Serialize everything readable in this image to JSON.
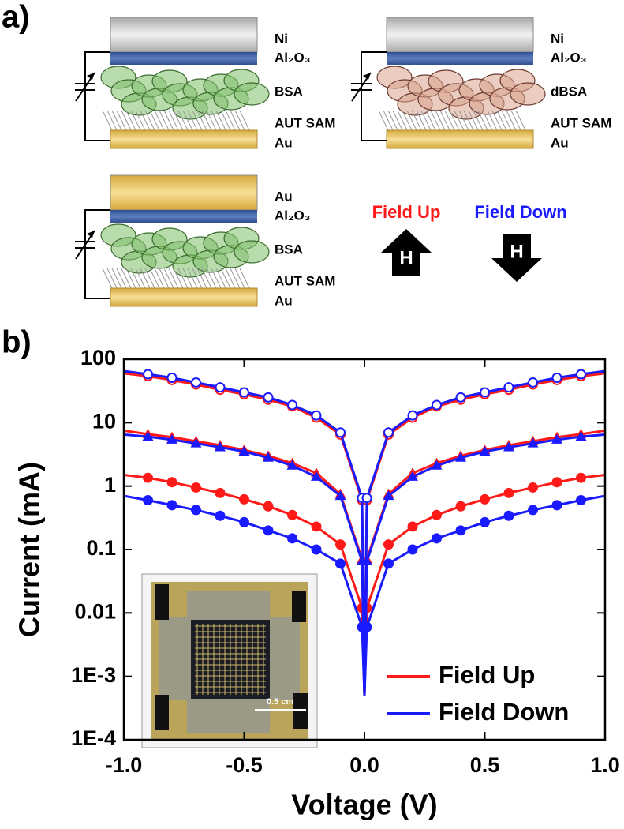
{
  "panel_labels": [
    "a)",
    "b)"
  ],
  "diagrams": [
    {
      "layers": [
        "Ni",
        "Al₂O₃",
        "BSA",
        "AUT SAM",
        "Au"
      ]
    },
    {
      "layers": [
        "Ni",
        "Al₂O₃",
        "dBSA",
        "AUT SAM",
        "Au"
      ]
    },
    {
      "layers": [
        "Au",
        "Al₂O₃",
        "BSA",
        "AUT SAM",
        "Au"
      ]
    }
  ],
  "field": {
    "up": "Field Up",
    "down": "Field Down",
    "symbol": "H"
  },
  "chart_data": {
    "type": "line",
    "xlabel": "Voltage (V)",
    "ylabel": "Current (mA)",
    "log_y": true,
    "legend": "lower right",
    "inset_scale_label": "0.5 cm",
    "x": [
      -1,
      -0.9,
      -0.8,
      -0.7,
      -0.6,
      -0.5,
      -0.4,
      -0.3,
      -0.2,
      -0.1,
      -0.01,
      0,
      0.01,
      0.1,
      0.2,
      0.3,
      0.4,
      0.5,
      0.6,
      0.7,
      0.8,
      0.9,
      1
    ],
    "xlim": [
      -1,
      1
    ],
    "xticks": [
      {
        "value": -1,
        "label": "-1.0"
      },
      -0.5,
      {
        "value": 0,
        "label": "0.0"
      },
      0.5,
      {
        "value": 1,
        "label": "1.0"
      }
    ],
    "ylim": [
      0.0001,
      100
    ],
    "yticks": [
      {
        "value": 0.0001,
        "label": "1E-4"
      },
      {
        "value": 0.001,
        "label": "1E-3"
      },
      0.01,
      0.1,
      1,
      10,
      100
    ],
    "series": [
      {
        "name": "Field Up",
        "color": "#ff1a1a",
        "curves": [
          {
            "marker": "circle-open",
            "values": [
              60,
              54,
              47,
              40,
              33,
              28,
              23,
              18,
              12,
              6.5,
              0.6,
              0.0005,
              0.6,
              6.5,
              12,
              18,
              23,
              28,
              33,
              40,
              47,
              54,
              60
            ]
          },
          {
            "marker": "triangle",
            "values": [
              7.5,
              6.6,
              5.9,
              5.1,
              4.4,
              3.7,
              3.0,
              2.3,
              1.6,
              0.75,
              0.07,
              0.0005,
              0.07,
              0.75,
              1.6,
              2.3,
              3.0,
              3.7,
              4.4,
              5.1,
              5.9,
              6.6,
              7.5
            ]
          },
          {
            "marker": "circle",
            "values": [
              1.5,
              1.35,
              1.15,
              0.95,
              0.78,
              0.62,
              0.48,
              0.35,
              0.23,
              0.12,
              0.012,
              0.0005,
              0.012,
              0.12,
              0.23,
              0.35,
              0.48,
              0.62,
              0.78,
              0.95,
              1.15,
              1.35,
              1.5
            ]
          }
        ]
      },
      {
        "name": "Field Down",
        "color": "#1a1aff",
        "curves": [
          {
            "marker": "circle-open",
            "values": [
              65,
              58,
              51,
              43,
              36,
              30,
              25,
              19,
              13,
              7,
              0.65,
              0.0005,
              0.65,
              7,
              13,
              19,
              25,
              30,
              36,
              43,
              51,
              58,
              65
            ]
          },
          {
            "marker": "triangle",
            "values": [
              6.5,
              6.0,
              5.4,
              4.7,
              4.1,
              3.5,
              2.8,
              2.1,
              1.4,
              0.7,
              0.065,
              0.0005,
              0.065,
              0.7,
              1.4,
              2.1,
              2.8,
              3.5,
              4.1,
              4.7,
              5.4,
              6.0,
              6.5
            ]
          },
          {
            "marker": "circle",
            "values": [
              0.7,
              0.6,
              0.5,
              0.42,
              0.34,
              0.27,
              0.2,
              0.15,
              0.1,
              0.06,
              0.006,
              0.0005,
              0.006,
              0.06,
              0.1,
              0.15,
              0.2,
              0.27,
              0.34,
              0.42,
              0.5,
              0.6,
              0.7
            ]
          }
        ]
      }
    ]
  }
}
